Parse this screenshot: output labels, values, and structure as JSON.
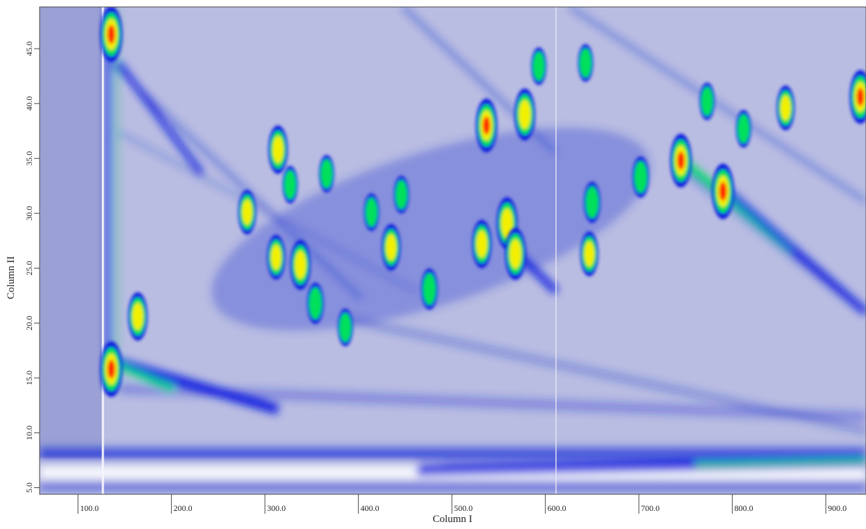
{
  "chart_data": {
    "type": "contour",
    "xlabel": "Column I",
    "ylabel": "Column II",
    "xlim": [
      59,
      943
    ],
    "ylim": [
      4.4,
      48.8
    ],
    "xticks": [
      {
        "value": 100,
        "label": "100.0"
      },
      {
        "value": 200,
        "label": "200.0"
      },
      {
        "value": 300,
        "label": "300.0"
      },
      {
        "value": 400,
        "label": "400.0"
      },
      {
        "value": 500,
        "label": "500.0"
      },
      {
        "value": 600,
        "label": "600.0"
      },
      {
        "value": 700,
        "label": "700.0"
      },
      {
        "value": 800,
        "label": "800.0"
      },
      {
        "value": 900,
        "label": "900.0"
      }
    ],
    "yticks": [
      {
        "value": 5,
        "label": "5.0"
      },
      {
        "value": 10,
        "label": "10.0"
      },
      {
        "value": 15,
        "label": "15.0"
      },
      {
        "value": 20,
        "label": "20.0"
      },
      {
        "value": 25,
        "label": "25.0"
      },
      {
        "value": 30,
        "label": "30.0"
      },
      {
        "value": 35,
        "label": "35.0"
      },
      {
        "value": 40,
        "label": "40.0"
      },
      {
        "value": 45,
        "label": "45.0"
      }
    ],
    "colorscale": [
      "#0a1ee0",
      "#00e05a",
      "#f2f000",
      "#ff2a00"
    ],
    "background": "#b9bde2",
    "peaks": {
      "x": [
        135.7,
        135.7,
        164,
        314,
        327,
        281,
        312,
        338,
        354,
        386,
        366,
        414,
        435,
        476,
        532,
        537,
        559,
        568,
        578,
        593,
        650,
        647,
        643,
        702,
        745,
        790,
        857,
        937,
        812,
        773,
        446
      ],
      "y": [
        46.3,
        15.8,
        20.6,
        35.8,
        32.6,
        30.1,
        26.0,
        25.3,
        21.8,
        19.6,
        33.6,
        30.1,
        26.9,
        23.1,
        27.2,
        38.0,
        29.1,
        26.3,
        39.0,
        43.4,
        31.0,
        26.3,
        43.7,
        33.3,
        34.8,
        32.0,
        39.6,
        40.6,
        37.7,
        40.2,
        31.7
      ],
      "intensity": [
        1.0,
        1.0,
        0.8,
        0.8,
        0.5,
        0.7,
        0.7,
        0.85,
        0.6,
        0.5,
        0.5,
        0.5,
        0.75,
        0.6,
        0.8,
        0.95,
        0.9,
        0.9,
        0.9,
        0.5,
        0.6,
        0.7,
        0.5,
        0.6,
        0.95,
        1.0,
        0.7,
        0.95,
        0.5,
        0.5,
        0.5
      ]
    }
  }
}
